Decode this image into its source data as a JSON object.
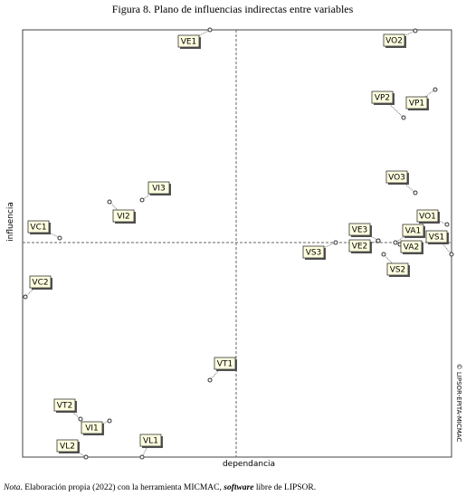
{
  "title": "Figura 8. Plano de influencias indirectas entre variables",
  "y_label": "influencia",
  "x_label": "dependancia",
  "watermark": "© LIPSOR-EPITA-MICMAC",
  "note": {
    "lead": "Nota",
    "text1": ". Elaboración propia (2022) con la herramienta MICMAC, ",
    "emph": "software",
    "text2": " libre de LIPSOR."
  },
  "nodes": [
    {
      "label": "VE1"
    },
    {
      "label": "VO2"
    },
    {
      "label": "VP2"
    },
    {
      "label": "VP1"
    },
    {
      "label": "VO3"
    },
    {
      "label": "VI3"
    },
    {
      "label": "VI2"
    },
    {
      "label": "VC1"
    },
    {
      "label": "VE3"
    },
    {
      "label": "VE2"
    },
    {
      "label": "VS3"
    },
    {
      "label": "VA1"
    },
    {
      "label": "VO1"
    },
    {
      "label": "VA2"
    },
    {
      "label": "VS1"
    },
    {
      "label": "VS2"
    },
    {
      "label": "VC2"
    },
    {
      "label": "VT1"
    },
    {
      "label": "VT2"
    },
    {
      "label": "VI1"
    },
    {
      "label": "VL2"
    },
    {
      "label": "VL1"
    }
  ]
}
